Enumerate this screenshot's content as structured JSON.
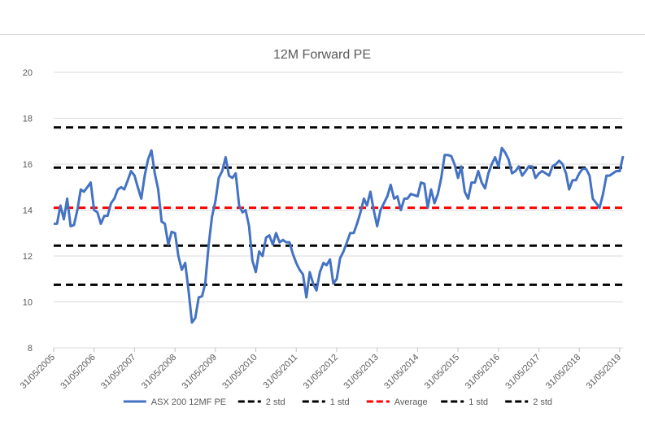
{
  "chart_data": {
    "type": "line",
    "title": "12M Forward PE",
    "xlabel": "",
    "ylabel": "",
    "ylim": [
      8,
      20
    ],
    "yticks": [
      8,
      10,
      12,
      14,
      16,
      18,
      20
    ],
    "xticks": [
      "31/05/2005",
      "31/05/2006",
      "31/05/2007",
      "31/05/2008",
      "31/05/2009",
      "31/05/2010",
      "31/05/2011",
      "31/05/2012",
      "31/05/2013",
      "31/05/2014",
      "31/05/2015",
      "31/05/2016",
      "31/05/2017",
      "31/05/2018",
      "31/05/2019"
    ],
    "grid": true,
    "legend_position": "bottom",
    "series": [
      {
        "name": "ASX 200 12MF PE",
        "color": "#4472c4",
        "style": "solid",
        "x": [
          "2005-05-31",
          "2005-06-30",
          "2005-07-31",
          "2005-08-31",
          "2005-09-30",
          "2005-10-31",
          "2005-11-30",
          "2005-12-31",
          "2006-01-31",
          "2006-02-28",
          "2006-03-31",
          "2006-04-30",
          "2006-05-31",
          "2006-06-30",
          "2006-07-31",
          "2006-08-31",
          "2006-09-30",
          "2006-10-31",
          "2006-11-30",
          "2006-12-31",
          "2007-01-31",
          "2007-02-28",
          "2007-03-31",
          "2007-04-30",
          "2007-05-31",
          "2007-06-30",
          "2007-07-31",
          "2007-08-31",
          "2007-09-30",
          "2007-10-31",
          "2007-11-30",
          "2007-12-31",
          "2008-01-31",
          "2008-02-29",
          "2008-03-31",
          "2008-04-30",
          "2008-05-31",
          "2008-06-30",
          "2008-07-31",
          "2008-08-31",
          "2008-09-30",
          "2008-10-31",
          "2008-11-30",
          "2008-12-31",
          "2009-01-31",
          "2009-02-28",
          "2009-03-31",
          "2009-04-30",
          "2009-05-31",
          "2009-06-30",
          "2009-07-31",
          "2009-08-31",
          "2009-09-30",
          "2009-10-31",
          "2009-11-30",
          "2009-12-31",
          "2010-01-31",
          "2010-02-28",
          "2010-03-31",
          "2010-04-30",
          "2010-05-31",
          "2010-06-30",
          "2010-07-31",
          "2010-08-31",
          "2010-09-30",
          "2010-10-31",
          "2010-11-30",
          "2010-12-31",
          "2011-01-31",
          "2011-02-28",
          "2011-03-31",
          "2011-04-30",
          "2011-05-31",
          "2011-06-30",
          "2011-07-31",
          "2011-08-31",
          "2011-09-30",
          "2011-10-31",
          "2011-11-30",
          "2011-12-31",
          "2012-01-31",
          "2012-02-29",
          "2012-03-31",
          "2012-04-30",
          "2012-05-31",
          "2012-06-30",
          "2012-07-31",
          "2012-08-31",
          "2012-09-30",
          "2012-10-31",
          "2012-11-30",
          "2012-12-31",
          "2013-01-31",
          "2013-02-28",
          "2013-03-31",
          "2013-04-30",
          "2013-05-31",
          "2013-06-30",
          "2013-07-31",
          "2013-08-31",
          "2013-09-30",
          "2013-10-31",
          "2013-11-30",
          "2013-12-31",
          "2014-01-31",
          "2014-02-28",
          "2014-03-31",
          "2014-04-30",
          "2014-05-31",
          "2014-06-30",
          "2014-07-31",
          "2014-08-31",
          "2014-09-30",
          "2014-10-31",
          "2014-11-30",
          "2014-12-31",
          "2015-01-31",
          "2015-02-28",
          "2015-03-31",
          "2015-04-30",
          "2015-05-31",
          "2015-06-30",
          "2015-07-31",
          "2015-08-31",
          "2015-09-30",
          "2015-10-31",
          "2015-11-30",
          "2015-12-31",
          "2016-01-31",
          "2016-02-29",
          "2016-03-31",
          "2016-04-30",
          "2016-05-31",
          "2016-06-30",
          "2016-07-31",
          "2016-08-31",
          "2016-09-30",
          "2016-10-31",
          "2016-11-30",
          "2016-12-31",
          "2017-01-31",
          "2017-02-28",
          "2017-03-31",
          "2017-04-30",
          "2017-05-31",
          "2017-06-30",
          "2017-07-31",
          "2017-08-31",
          "2017-09-30",
          "2017-10-31",
          "2017-11-30",
          "2017-12-31",
          "2018-01-31",
          "2018-02-28",
          "2018-03-31",
          "2018-04-30",
          "2018-05-31",
          "2018-06-30",
          "2018-07-31",
          "2018-08-31",
          "2018-09-30",
          "2018-10-31",
          "2018-11-30",
          "2018-12-31",
          "2019-01-31",
          "2019-02-28",
          "2019-03-31",
          "2019-04-30",
          "2019-05-31",
          "2019-06-30"
        ],
        "values": [
          13.4,
          13.4,
          14.2,
          13.6,
          14.5,
          13.3,
          13.35,
          14.0,
          14.9,
          14.8,
          15.0,
          15.2,
          14.0,
          13.9,
          13.4,
          13.75,
          13.75,
          14.3,
          14.5,
          14.9,
          15.0,
          14.9,
          15.3,
          15.7,
          15.5,
          15.0,
          14.5,
          15.5,
          16.2,
          16.6,
          15.6,
          14.9,
          13.5,
          13.4,
          12.5,
          13.05,
          13.0,
          12.0,
          11.4,
          11.7,
          10.5,
          9.1,
          9.3,
          10.2,
          10.25,
          10.8,
          12.5,
          13.7,
          14.4,
          15.4,
          15.7,
          16.3,
          15.5,
          15.4,
          15.6,
          14.2,
          13.9,
          14.0,
          13.3,
          11.8,
          11.3,
          12.2,
          12.0,
          12.8,
          12.9,
          12.5,
          13.0,
          12.6,
          12.7,
          12.6,
          12.6,
          12.1,
          11.7,
          11.4,
          11.2,
          10.2,
          11.3,
          10.8,
          10.5,
          11.3,
          11.7,
          11.6,
          11.85,
          10.8,
          11.0,
          11.9,
          12.2,
          12.6,
          13.0,
          13.0,
          13.4,
          13.9,
          14.5,
          14.2,
          14.8,
          14.0,
          13.3,
          14.0,
          14.3,
          14.6,
          15.1,
          14.5,
          14.6,
          14.0,
          14.5,
          14.5,
          14.7,
          14.65,
          14.6,
          15.2,
          15.15,
          14.1,
          14.9,
          14.3,
          14.7,
          15.4,
          16.4,
          16.4,
          16.35,
          16.0,
          15.4,
          15.9,
          14.8,
          14.5,
          15.2,
          15.2,
          15.7,
          15.2,
          14.95,
          15.6,
          16.0,
          16.3,
          15.9,
          16.7,
          16.5,
          16.2,
          15.6,
          15.7,
          15.9,
          15.5,
          15.7,
          15.9,
          15.9,
          15.4,
          15.6,
          15.7,
          15.6,
          15.5,
          15.9,
          16.0,
          16.15,
          16.0,
          15.6,
          14.9,
          15.3,
          15.3,
          15.6,
          15.8,
          15.8,
          15.5,
          14.5,
          14.3,
          14.1,
          14.7,
          15.5,
          15.5,
          15.6,
          15.7,
          15.7,
          16.35
        ]
      },
      {
        "name": "2 std",
        "color": "#000000",
        "style": "dashed",
        "value": 17.6
      },
      {
        "name": "1 std",
        "color": "#000000",
        "style": "dashed",
        "value": 15.85
      },
      {
        "name": "Average",
        "color": "#ff0000",
        "style": "dashed",
        "value": 14.1
      },
      {
        "name": "1 std",
        "color": "#000000",
        "style": "dashed",
        "value": 12.45
      },
      {
        "name": "2 std",
        "color": "#000000",
        "style": "dashed",
        "value": 10.75
      }
    ]
  }
}
